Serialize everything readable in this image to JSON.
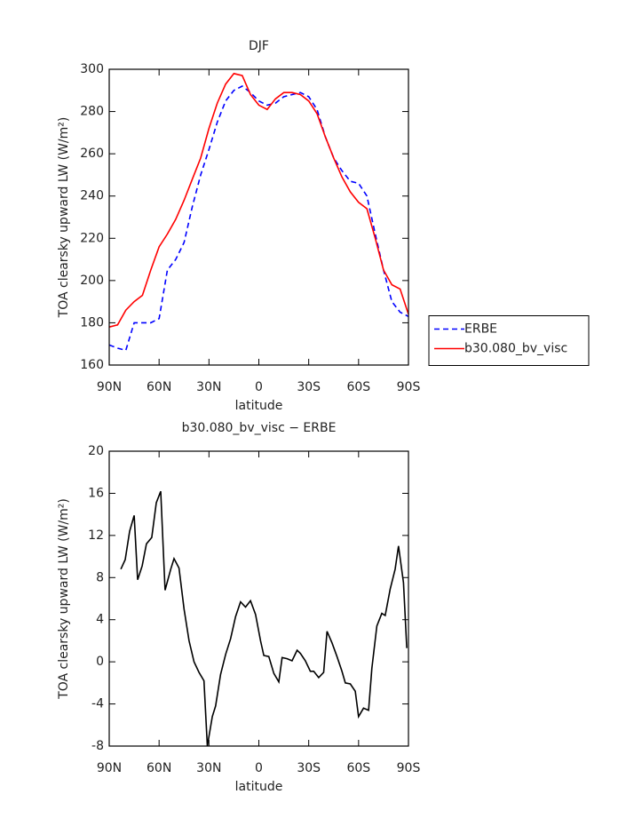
{
  "chart_data": [
    {
      "type": "line",
      "title": "DJF",
      "xlabel": "latitude",
      "ylabel": "TOA clearsky upward LW (W/m²)",
      "x": [
        90,
        85,
        80,
        75,
        70,
        65,
        60,
        55,
        50,
        45,
        40,
        35,
        30,
        25,
        20,
        15,
        10,
        5,
        0,
        -5,
        -10,
        -15,
        -20,
        -25,
        -30,
        -35,
        -40,
        -45,
        -50,
        -55,
        -60,
        -65,
        -70,
        -75,
        -80,
        -85,
        -90
      ],
      "series": [
        {
          "name": "ERBE",
          "color": "#0000ff",
          "dashed": true,
          "values": [
            169.5,
            168,
            167,
            180,
            180,
            180,
            182,
            205,
            210,
            218,
            235,
            250,
            262,
            275,
            285,
            290,
            292,
            289,
            285,
            283,
            284,
            287,
            288,
            289,
            287,
            281,
            268,
            258,
            252,
            247,
            246,
            240,
            222,
            205,
            190,
            185,
            183
          ]
        },
        {
          "name": "b30.080_bv_visc",
          "color": "#ff0000",
          "dashed": false,
          "values": [
            178,
            179,
            186,
            190,
            193,
            205,
            216,
            222,
            229,
            238,
            248,
            258,
            272,
            284,
            293,
            298,
            297,
            288,
            283,
            281,
            286,
            289,
            289,
            288,
            285,
            279,
            268,
            258,
            249,
            242,
            237,
            234,
            220,
            205,
            198,
            196,
            184
          ]
        }
      ],
      "xlim": [
        90,
        -90
      ],
      "xticks": [
        {
          "value": 90,
          "label": "90N"
        },
        {
          "value": 60,
          "label": "60N"
        },
        {
          "value": 30,
          "label": "30N"
        },
        0,
        {
          "value": -30,
          "label": "30S"
        },
        {
          "value": -60,
          "label": "60S"
        },
        {
          "value": -90,
          "label": "90S"
        }
      ],
      "ylim": [
        160,
        300
      ],
      "yticks": [
        160,
        180,
        200,
        220,
        240,
        260,
        280,
        300
      ],
      "legend": "right"
    },
    {
      "type": "line",
      "title": "b30.080_bv_visc − ERBE",
      "xlabel": "latitude",
      "ylabel": "TOA clearsky upward LW (W/m²)",
      "x": [
        83,
        80.4,
        77.7,
        75,
        72.9,
        70.2,
        67.6,
        64.4,
        61.7,
        59,
        56.4,
        53,
        51,
        48,
        45,
        42,
        39,
        36,
        33,
        31,
        28,
        26,
        23,
        20,
        17,
        14,
        11,
        8,
        5,
        2,
        -1,
        -3,
        -6,
        -9,
        -12,
        -14,
        -17,
        -20,
        -23,
        -25,
        -28,
        -31,
        -33,
        -36,
        -39,
        -41,
        -44,
        -47,
        -50,
        -52,
        -55,
        -58,
        -60,
        -63,
        -66,
        -68,
        -71,
        -74,
        -76,
        -79,
        -82,
        -84,
        -87,
        -89
      ],
      "values": [
        8.8,
        9.7,
        12.4,
        13.9,
        7.8,
        9.1,
        11.2,
        11.8,
        15.1,
        16.2,
        6.8,
        8.8,
        9.8,
        8.9,
        5,
        2,
        0,
        -1,
        -1.8,
        -8,
        -5.2,
        -4.2,
        -1.2,
        0.7,
        2.2,
        4.3,
        5.7,
        5.2,
        5.8,
        4.5,
        2,
        0.6,
        0.5,
        -1.1,
        -1.9,
        0.4,
        0.3,
        0.1,
        1.1,
        0.8,
        0.1,
        -0.9,
        -0.9,
        -1.5,
        -1,
        2.9,
        1.8,
        0.5,
        -0.9,
        -2,
        -2.1,
        -2.8,
        -5.2,
        -4.4,
        -4.6,
        -0.6,
        3.4,
        4.6,
        4.4,
        6.9,
        8.8,
        11,
        7.5,
        1.3
      ],
      "color": "#000000",
      "xlim": [
        90,
        -90
      ],
      "xticks": [
        {
          "value": 90,
          "label": "90N"
        },
        {
          "value": 60,
          "label": "60N"
        },
        {
          "value": 30,
          "label": "30N"
        },
        0,
        {
          "value": -30,
          "label": "30S"
        },
        {
          "value": -60,
          "label": "60S"
        },
        {
          "value": -90,
          "label": "90S"
        }
      ],
      "ylim": [
        -8,
        20
      ],
      "yticks": [
        -8,
        -4,
        0,
        4,
        8,
        12,
        16,
        20
      ]
    }
  ]
}
